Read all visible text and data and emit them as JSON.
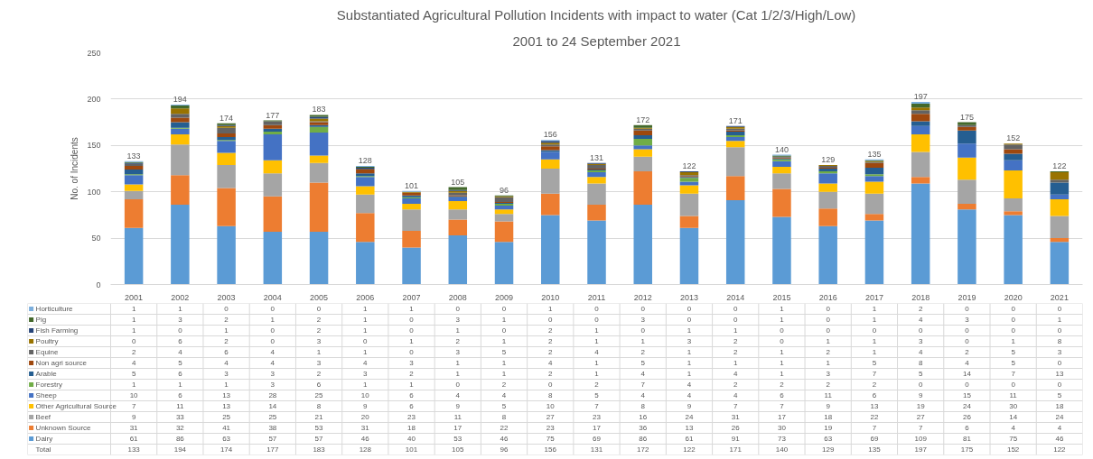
{
  "chart_data": {
    "type": "bar",
    "stacked": true,
    "title": "Substantiated Agricultural Pollution Incidents with impact to water (Cat 1/2/3/High/Low)",
    "subtitle": "2001 to 24 September 2021",
    "ylabel": "No. of Incidents",
    "categories": [
      "2001",
      "2002",
      "2003",
      "2004",
      "2005",
      "2006",
      "2007",
      "2008",
      "2009",
      "2010",
      "2011",
      "2012",
      "2013",
      "2014",
      "2015",
      "2016",
      "2017",
      "2018",
      "2019",
      "2020",
      "2021"
    ],
    "ylim": [
      0,
      250
    ],
    "yticks": [
      0,
      50,
      100,
      150,
      200,
      250
    ],
    "grid": "y",
    "legend": "bottom",
    "data_labels": true,
    "totals": [
      "133",
      "194",
      "174",
      "177",
      "183",
      "128",
      "101",
      "105",
      "96",
      "156",
      "131",
      "172",
      "122",
      "171",
      "140",
      "129",
      "135",
      "197",
      "175",
      "152",
      "122"
    ],
    "annotations": [
      "Total"
    ],
    "series": [
      {
        "name": "Dairy",
        "color": "#5b9bd5",
        "values": [
          61,
          86,
          63,
          57,
          57,
          46,
          40,
          53,
          46,
          75,
          69,
          86,
          61,
          91,
          73,
          63,
          69,
          109,
          81,
          75,
          46
        ]
      },
      {
        "name": "Unknown Source",
        "color": "#ed7d31",
        "values": [
          31,
          32,
          41,
          38,
          53,
          31,
          18,
          17,
          22,
          23,
          17,
          36,
          13,
          26,
          30,
          19,
          7,
          7,
          6,
          4,
          4
        ]
      },
      {
        "name": "Beef",
        "color": "#a5a5a5",
        "values": [
          9,
          33,
          25,
          25,
          21,
          20,
          23,
          11,
          8,
          27,
          23,
          16,
          24,
          31,
          17,
          18,
          22,
          27,
          26,
          14,
          24
        ]
      },
      {
        "name": "Other Agricultural Source",
        "color": "#ffc000",
        "values": [
          7,
          11,
          13,
          14,
          8,
          9,
          6,
          9,
          5,
          10,
          7,
          8,
          9,
          7,
          7,
          9,
          13,
          19,
          24,
          30,
          18
        ]
      },
      {
        "name": "Sheep",
        "color": "#4472c4",
        "values": [
          10,
          6,
          13,
          28,
          25,
          10,
          6,
          4,
          4,
          8,
          5,
          4,
          4,
          4,
          6,
          11,
          6,
          9,
          15,
          11,
          5
        ]
      },
      {
        "name": "Forestry",
        "color": "#70ad47",
        "values": [
          1,
          1,
          1,
          3,
          6,
          1,
          1,
          0,
          2,
          0,
          2,
          7,
          4,
          2,
          2,
          2,
          2,
          0,
          0,
          0,
          0
        ]
      },
      {
        "name": "Arable",
        "color": "#255e91",
        "values": [
          5,
          6,
          3,
          3,
          2,
          3,
          2,
          1,
          1,
          2,
          1,
          4,
          1,
          4,
          1,
          3,
          7,
          5,
          14,
          7,
          13
        ]
      },
      {
        "name": "Non agri source",
        "color": "#9e480e",
        "values": [
          4,
          5,
          4,
          4,
          3,
          4,
          3,
          1,
          1,
          4,
          1,
          5,
          1,
          1,
          1,
          1,
          5,
          8,
          4,
          5,
          0
        ]
      },
      {
        "name": "Equine",
        "color": "#636363",
        "values": [
          2,
          4,
          6,
          4,
          1,
          1,
          0,
          3,
          5,
          2,
          4,
          2,
          1,
          2,
          1,
          2,
          1,
          4,
          2,
          5,
          3
        ]
      },
      {
        "name": "Poultry",
        "color": "#997300",
        "values": [
          0,
          6,
          2,
          0,
          3,
          0,
          1,
          2,
          1,
          2,
          1,
          1,
          3,
          2,
          0,
          1,
          1,
          3,
          0,
          1,
          8
        ]
      },
      {
        "name": "Fish Farming",
        "color": "#264478",
        "values": [
          1,
          0,
          1,
          0,
          2,
          1,
          0,
          1,
          0,
          2,
          1,
          0,
          1,
          1,
          0,
          0,
          0,
          0,
          0,
          0,
          0
        ]
      },
      {
        "name": "Pig",
        "color": "#43682b",
        "values": [
          1,
          3,
          2,
          1,
          2,
          1,
          0,
          3,
          1,
          0,
          0,
          3,
          0,
          0,
          1,
          0,
          1,
          4,
          3,
          0,
          1
        ]
      },
      {
        "name": "Horticulture",
        "color": "#7cafdd",
        "values": [
          1,
          1,
          0,
          0,
          0,
          1,
          1,
          0,
          0,
          1,
          0,
          0,
          0,
          0,
          1,
          0,
          1,
          2,
          0,
          0,
          0
        ]
      }
    ]
  }
}
